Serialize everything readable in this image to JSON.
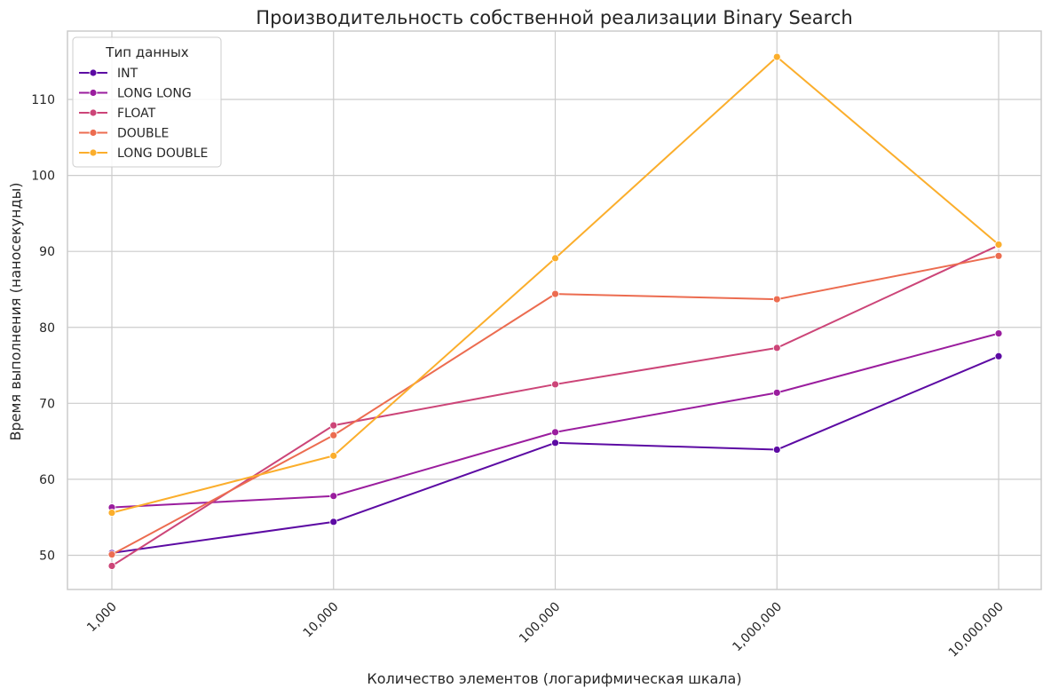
{
  "chart_data": {
    "type": "line",
    "title": "Производительность собственной реализации Binary Search",
    "xlabel": "Количество элементов (логарифмическая шкала)",
    "ylabel": "Время выполнения (наносекунды)",
    "x_scale": "log",
    "x": [
      1000,
      10000,
      100000,
      1000000,
      10000000
    ],
    "x_tick_labels": [
      "1,000",
      "10,000",
      "100,000",
      "1,000,000",
      "10,000,000"
    ],
    "ylim": [
      45.5,
      119
    ],
    "y_ticks": [
      50,
      60,
      70,
      80,
      90,
      100,
      110
    ],
    "grid": true,
    "legend": {
      "title": "Тип данных",
      "placement": "top-left"
    },
    "series": [
      {
        "name": "INT",
        "color": "#5c0aa3",
        "values": [
          50.3,
          54.4,
          64.8,
          63.9,
          76.2
        ]
      },
      {
        "name": "LONG LONG",
        "color": "#9a1d9e",
        "values": [
          56.3,
          57.8,
          66.2,
          71.4,
          79.2
        ]
      },
      {
        "name": "FLOAT",
        "color": "#cc4578",
        "values": [
          48.6,
          67.1,
          72.5,
          77.3,
          90.8
        ]
      },
      {
        "name": "DOUBLE",
        "color": "#ec6c50",
        "values": [
          50.1,
          65.8,
          84.4,
          83.7,
          89.4
        ]
      },
      {
        "name": "LONG DOUBLE",
        "color": "#fbae2c",
        "values": [
          55.6,
          63.1,
          89.1,
          115.6,
          90.9
        ]
      }
    ]
  }
}
